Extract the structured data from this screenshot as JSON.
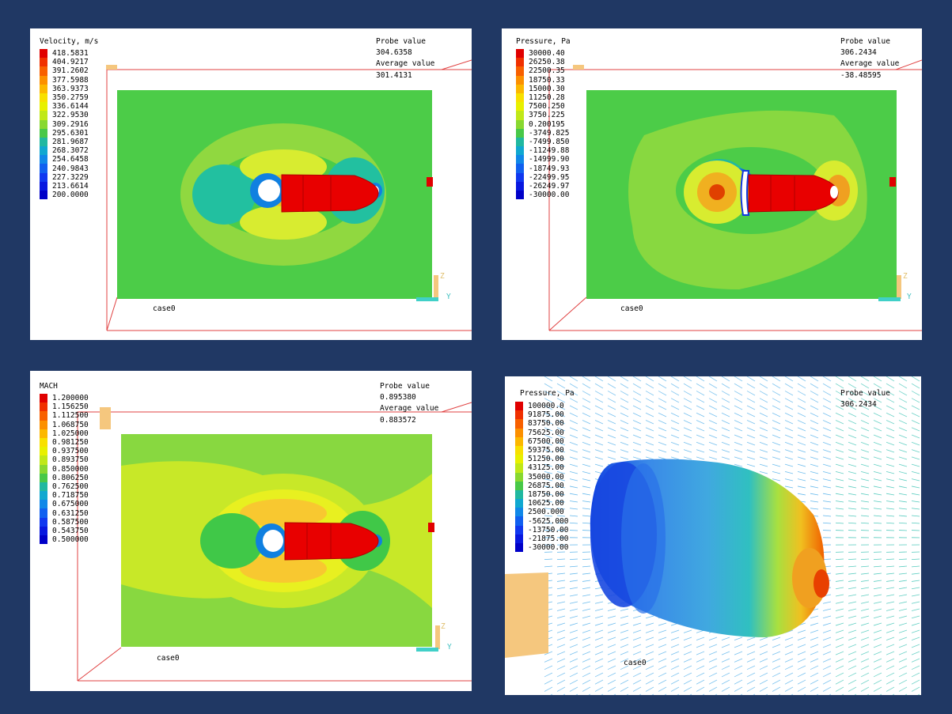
{
  "panels": [
    {
      "id": "velocity",
      "title": "Velocity, m/s",
      "legend": [
        "418.5831",
        "404.9217",
        "391.2602",
        "377.5988",
        "363.9373",
        "350.2759",
        "336.6144",
        "322.9530",
        "309.2916",
        "295.6301",
        "281.9687",
        "268.3072",
        "254.6458",
        "240.9843",
        "227.3229",
        "213.6614",
        "200.0000"
      ],
      "probe_label": "Probe value",
      "probe_value": "304.6358",
      "average_label": "Average value",
      "average_value": "301.4131",
      "case_label": "case0"
    },
    {
      "id": "pressure",
      "title": "Pressure, Pa",
      "legend": [
        "30000.40",
        "26250.38",
        "22500.35",
        "18750.33",
        "15000.30",
        "11250.28",
        "7500.250",
        "3750.225",
        "0.200195",
        "-3749.825",
        "-7499.850",
        "-11249.88",
        "-14999.90",
        "-18749.93",
        "-22499.95",
        "-26249.97",
        "-30000.00"
      ],
      "probe_label": "Probe value",
      "probe_value": "306.2434",
      "average_label": "Average value",
      "average_value": "-38.48595",
      "case_label": "case0"
    },
    {
      "id": "mach",
      "title": "MACH",
      "legend": [
        "1.200000",
        "1.156250",
        "1.112500",
        "1.068750",
        "1.025000",
        "0.981250",
        "0.937500",
        "0.893750",
        "0.850000",
        "0.806250",
        "0.762500",
        "0.718750",
        "0.675000",
        "0.631250",
        "0.587500",
        "0.543750",
        "0.500000"
      ],
      "probe_label": "Probe value",
      "probe_value": "0.895380",
      "average_label": "Average value",
      "average_value": "0.883572",
      "case_label": "case0"
    },
    {
      "id": "pressure3d",
      "title": "Pressure, Pa",
      "legend": [
        "100000.0",
        "91875.00",
        "83750.00",
        "75625.00",
        "67500.00",
        "59375.00",
        "51250.00",
        "43125.00",
        "35000.00",
        "26875.00",
        "18750.00",
        "10625.00",
        "2500.000",
        "-5625.000",
        "-13750.00",
        "-21875.00",
        "-30000.00"
      ],
      "probe_label": "Probe value",
      "probe_value": "306.2434",
      "case_label": "case0"
    }
  ],
  "colors": {
    "background": "#203864",
    "legend_scale": [
      "#e00000",
      "#f03000",
      "#f86000",
      "#fc9000",
      "#fcb800",
      "#f8e000",
      "#e8f000",
      "#c0e818",
      "#88d830",
      "#48c848",
      "#20b8a0",
      "#10a8d0",
      "#1088e8",
      "#1060f0",
      "#1038f0",
      "#0818e0",
      "#0000c8"
    ]
  },
  "axis_labels": {
    "z": "Z",
    "y": "Y"
  }
}
